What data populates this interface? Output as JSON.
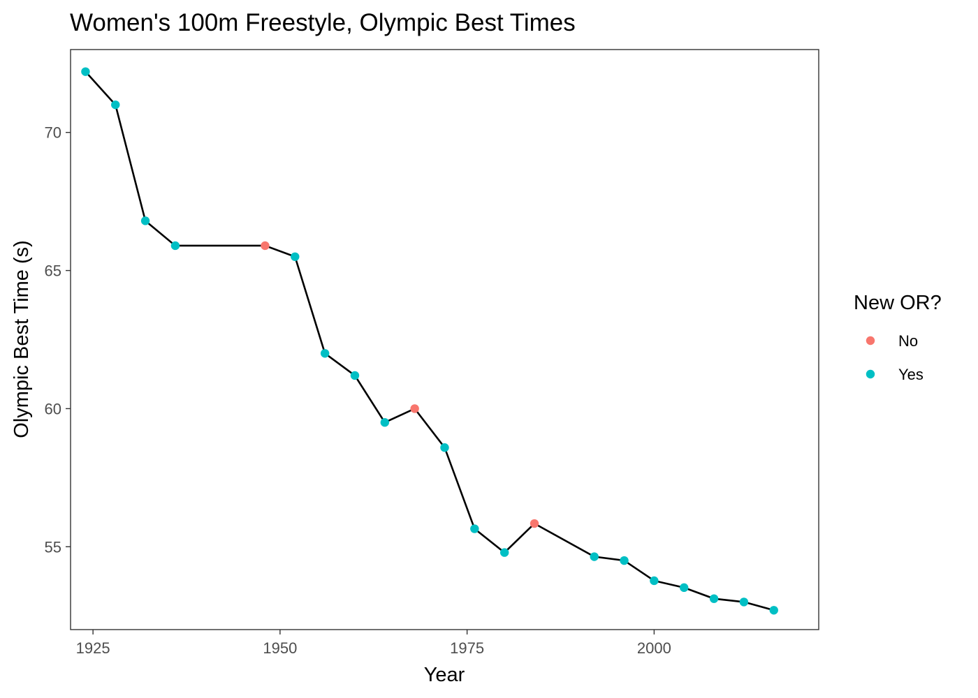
{
  "chart_data": {
    "type": "line",
    "title": "Women's 100m Freestyle, Olympic Best Times",
    "xlabel": "Year",
    "ylabel": "Olympic Best Time (s)",
    "xlim": [
      1922,
      2022
    ],
    "ylim": [
      52.0,
      73.0
    ],
    "x_ticks": [
      1925,
      1950,
      1975,
      2000
    ],
    "y_ticks": [
      55,
      60,
      65,
      70
    ],
    "grid": false,
    "line_color": "#000000",
    "legend": {
      "title": "New OR?",
      "placement": "right",
      "entries": [
        {
          "label": "No",
          "color": "#F8766D"
        },
        {
          "label": "Yes",
          "color": "#00BFC4"
        }
      ]
    },
    "points": [
      {
        "x": 1924,
        "y": 72.2,
        "new_or": "Yes"
      },
      {
        "x": 1928,
        "y": 71.0,
        "new_or": "Yes"
      },
      {
        "x": 1932,
        "y": 66.8,
        "new_or": "Yes"
      },
      {
        "x": 1936,
        "y": 65.9,
        "new_or": "Yes"
      },
      {
        "x": 1948,
        "y": 65.9,
        "new_or": "No"
      },
      {
        "x": 1952,
        "y": 65.5,
        "new_or": "Yes"
      },
      {
        "x": 1956,
        "y": 62.0,
        "new_or": "Yes"
      },
      {
        "x": 1960,
        "y": 61.2,
        "new_or": "Yes"
      },
      {
        "x": 1964,
        "y": 59.5,
        "new_or": "Yes"
      },
      {
        "x": 1968,
        "y": 60.0,
        "new_or": "No"
      },
      {
        "x": 1972,
        "y": 58.59,
        "new_or": "Yes"
      },
      {
        "x": 1976,
        "y": 55.65,
        "new_or": "Yes"
      },
      {
        "x": 1980,
        "y": 54.79,
        "new_or": "Yes"
      },
      {
        "x": 1984,
        "y": 55.84,
        "new_or": "No"
      },
      {
        "x": 1992,
        "y": 54.64,
        "new_or": "Yes"
      },
      {
        "x": 1996,
        "y": 54.5,
        "new_or": "Yes"
      },
      {
        "x": 2000,
        "y": 53.77,
        "new_or": "Yes"
      },
      {
        "x": 2004,
        "y": 53.52,
        "new_or": "Yes"
      },
      {
        "x": 2008,
        "y": 53.12,
        "new_or": "Yes"
      },
      {
        "x": 2012,
        "y": 53.0,
        "new_or": "Yes"
      },
      {
        "x": 2016,
        "y": 52.7,
        "new_or": "Yes"
      }
    ]
  }
}
